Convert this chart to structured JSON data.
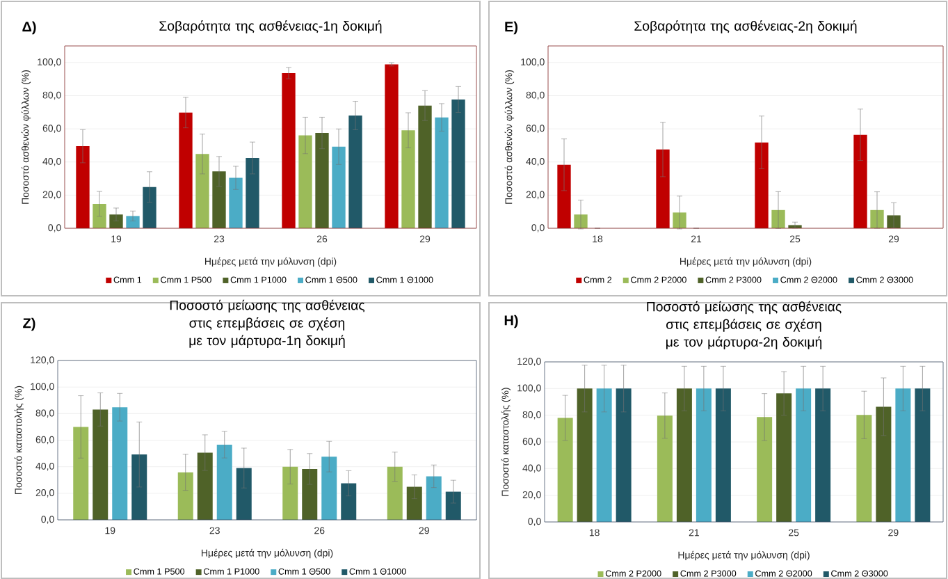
{
  "chart_data": [
    {
      "type": "bar",
      "title": "Σοβαρότητα της ασθένειας-1η δοκιμή",
      "annotations": [
        "Δ)"
      ],
      "xlabel": "Ημέρες μετά την μόλυνση (dpi)",
      "ylabel": "Ποσοστό ασθενών φύλλων (%)",
      "categories": [
        "19",
        "23",
        "26",
        "29"
      ],
      "ylim": [
        0,
        110
      ],
      "yticks": [
        {
          "value": 0,
          "label": "0,0"
        },
        {
          "value": 20,
          "label": "20,0"
        },
        {
          "value": 40,
          "label": "40,0"
        },
        {
          "value": 60,
          "label": "60,0"
        },
        {
          "value": 80,
          "label": "80,0"
        },
        {
          "value": 100,
          "label": "100,0"
        }
      ],
      "grid": "y",
      "legend": "bottom",
      "series": [
        {
          "name": "Cmm 1",
          "color": "#c00000",
          "values": [
            49.5,
            69.8,
            93.6,
            98.9
          ],
          "errors": [
            10,
            9.2,
            3.4,
            1
          ]
        },
        {
          "name": "Cmm 1 P500",
          "color": "#9bbb59",
          "values": [
            14.7,
            44.8,
            56,
            59.1
          ],
          "errors": [
            7.5,
            12,
            11,
            10.6
          ]
        },
        {
          "name": "Cmm 1 P1000",
          "color": "#4f6228",
          "values": [
            8.3,
            34.3,
            57.5,
            74
          ],
          "errors": [
            3.9,
            9,
            9.5,
            9
          ]
        },
        {
          "name": "Cmm 1 Θ500",
          "color": "#4bacc6",
          "values": [
            7.4,
            30.4,
            49.2,
            66.9
          ],
          "errors": [
            3,
            7,
            10.7,
            8.3
          ]
        },
        {
          "name": "Cmm 1 Θ1000",
          "color": "#215968",
          "values": [
            24.9,
            42.4,
            68,
            77.7
          ],
          "errors": [
            9.2,
            9.6,
            8.6,
            7.8
          ]
        }
      ]
    },
    {
      "type": "bar",
      "title": "Σοβαρότητα της ασθένειας-2η δοκιμή",
      "annotations": [
        "Ε)"
      ],
      "xlabel": "Ημέρες μετά την μόλυνση (dpi)",
      "ylabel": "Ποσοστό ασθενών φύλλων (%)",
      "categories": [
        "18",
        "21",
        "25",
        "29"
      ],
      "ylim": [
        0,
        110
      ],
      "yticks": [
        {
          "value": 0,
          "label": "0,0"
        },
        {
          "value": 20,
          "label": "20,0"
        },
        {
          "value": 40,
          "label": "40,0"
        },
        {
          "value": 60,
          "label": "60,0"
        },
        {
          "value": 80,
          "label": "80,0"
        },
        {
          "value": 100,
          "label": "100,0"
        }
      ],
      "grid": "y",
      "legend": "bottom",
      "series": [
        {
          "name": "Cmm 2",
          "color": "#c00000",
          "values": [
            38.3,
            47.5,
            51.8,
            56.4
          ],
          "errors": [
            15.6,
            16.4,
            15.9,
            15.5
          ]
        },
        {
          "name": "Cmm 2 P2000",
          "color": "#9bbb59",
          "values": [
            8.3,
            9.5,
            11,
            11
          ],
          "errors": [
            8.7,
            9.9,
            11.1,
            11
          ]
        },
        {
          "name": "Cmm 2 P3000",
          "color": "#4f6228",
          "values": [
            0,
            0,
            1.9,
            7.8
          ],
          "errors": [
            null,
            null,
            1.8,
            7.6
          ]
        },
        {
          "name": "Cmm 2 Θ2000",
          "color": "#4bacc6",
          "values": [
            0,
            0,
            0,
            0
          ]
        },
        {
          "name": "Cmm 2 Θ3000",
          "color": "#215968",
          "values": [
            0,
            0,
            0,
            0
          ]
        }
      ]
    },
    {
      "type": "bar",
      "title": "Ποσοστό μείωσης της ασθένειας στις επεμβάσεις σε σχέση με τον μάρτυρα-1η δοκιμή",
      "annotations": [
        "Ζ)"
      ],
      "xlabel": "Ημέρες μετά την μόλυνση (dpi)",
      "ylabel": "Ποσοστό καταστολής (%)",
      "categories": [
        "19",
        "23",
        "26",
        "29"
      ],
      "ylim": [
        0,
        120
      ],
      "yticks": [
        {
          "value": 0,
          "label": "0,0"
        },
        {
          "value": 20,
          "label": "20,0"
        },
        {
          "value": 40,
          "label": "40,0"
        },
        {
          "value": 60,
          "label": "60,0"
        },
        {
          "value": 80,
          "label": "80,0"
        },
        {
          "value": 100,
          "label": "100,0"
        },
        {
          "value": 120,
          "label": "120,0"
        }
      ],
      "grid": "y",
      "legend": "bottom",
      "series": [
        {
          "name": "Cmm 1 P500",
          "color": "#9bbb59",
          "values": [
            70,
            35.8,
            40,
            40
          ],
          "errors": [
            23.5,
            13.6,
            13,
            11
          ]
        },
        {
          "name": "Cmm 1 P1000",
          "color": "#4f6228",
          "values": [
            83.1,
            50.6,
            38.3,
            24.9
          ],
          "errors": [
            12.5,
            13.4,
            11.6,
            9
          ]
        },
        {
          "name": "Cmm 1 Θ500",
          "color": "#4bacc6",
          "values": [
            84.8,
            56.6,
            47.6,
            32.8
          ],
          "errors": [
            10.4,
            10,
            11.5,
            8.5
          ]
        },
        {
          "name": "Cmm 1 Θ1000",
          "color": "#215968",
          "values": [
            49.2,
            39,
            27.5,
            21.2
          ],
          "errors": [
            24.5,
            15,
            9.5,
            8.6
          ]
        }
      ]
    },
    {
      "type": "bar",
      "title": "Ποσοστό μείωσης της ασθένειας στις επεμβάσεις σε σχέση με τον μάρτυρα-2η δοκιμή",
      "annotations": [
        "Η)"
      ],
      "xlabel": "Ημέρες μετά την μόλυνση (dpi)",
      "ylabel": "Ποσοστό καταστολής (%)",
      "categories": [
        "18",
        "21",
        "25",
        "29"
      ],
      "ylim": [
        0,
        120
      ],
      "yticks": [
        {
          "value": 0,
          "label": "0,0"
        },
        {
          "value": 20,
          "label": "20,0"
        },
        {
          "value": 40,
          "label": "40,0"
        },
        {
          "value": 60,
          "label": "60,0"
        },
        {
          "value": 80,
          "label": "80,0"
        },
        {
          "value": 100,
          "label": "100,0"
        },
        {
          "value": 120,
          "label": "120,0"
        }
      ],
      "grid": "y",
      "legend": "bottom",
      "series": [
        {
          "name": "Cmm 2 P2000",
          "color": "#9bbb59",
          "values": [
            78,
            79.7,
            78.6,
            80.2
          ],
          "errors": [
            16.9,
            17,
            17.6,
            17.8
          ]
        },
        {
          "name": "Cmm 2 P3000",
          "color": "#4f6228",
          "values": [
            100,
            100,
            96.4,
            86.4
          ],
          "errors": [
            17.5,
            16.7,
            16.3,
            21.6
          ]
        },
        {
          "name": "Cmm 2 Θ2000",
          "color": "#4bacc6",
          "values": [
            100,
            100,
            100,
            100
          ],
          "errors": [
            17.5,
            16.7,
            16.7,
            16.7
          ]
        },
        {
          "name": "Cmm 2 Θ3000",
          "color": "#215968",
          "values": [
            100,
            100,
            100,
            100
          ],
          "errors": [
            17.5,
            16.7,
            16.7,
            16.7
          ]
        }
      ]
    }
  ]
}
